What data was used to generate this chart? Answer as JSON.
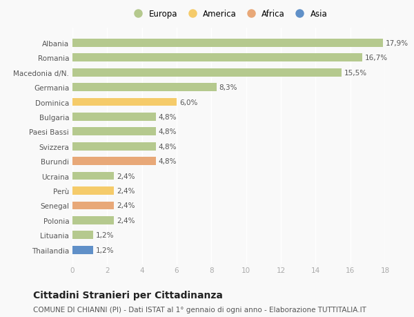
{
  "categories": [
    "Albania",
    "Romania",
    "Macedonia d/N.",
    "Germania",
    "Dominica",
    "Bulgaria",
    "Paesi Bassi",
    "Svizzera",
    "Burundi",
    "Ucraina",
    "Perù",
    "Senegal",
    "Polonia",
    "Lituania",
    "Thailandia"
  ],
  "values": [
    17.9,
    16.7,
    15.5,
    8.3,
    6.0,
    4.8,
    4.8,
    4.8,
    4.8,
    2.4,
    2.4,
    2.4,
    2.4,
    1.2,
    1.2
  ],
  "labels": [
    "17,9%",
    "16,7%",
    "15,5%",
    "8,3%",
    "6,0%",
    "4,8%",
    "4,8%",
    "4,8%",
    "4,8%",
    "2,4%",
    "2,4%",
    "2,4%",
    "2,4%",
    "1,2%",
    "1,2%"
  ],
  "continent": [
    "Europa",
    "Europa",
    "Europa",
    "Europa",
    "America",
    "Europa",
    "Europa",
    "Europa",
    "Africa",
    "Europa",
    "America",
    "Africa",
    "Europa",
    "Europa",
    "Asia"
  ],
  "colors": {
    "Europa": "#b5c98e",
    "America": "#f5cb6a",
    "Africa": "#e8a878",
    "Asia": "#6090c8"
  },
  "xlim": [
    0,
    18
  ],
  "xticks": [
    0,
    2,
    4,
    6,
    8,
    10,
    12,
    14,
    16,
    18
  ],
  "title": "Cittadini Stranieri per Cittadinanza",
  "subtitle": "COMUNE DI CHIANNI (PI) - Dati ISTAT al 1° gennaio di ogni anno - Elaborazione TUTTITALIA.IT",
  "background_color": "#f9f9f9",
  "plot_bg_color": "#f9f9f9",
  "grid_color": "#ffffff",
  "bar_height": 0.55,
  "title_fontsize": 10,
  "subtitle_fontsize": 7.5,
  "label_fontsize": 7.5,
  "tick_fontsize": 7.5,
  "legend_fontsize": 8.5,
  "legend_labels": [
    "Europa",
    "America",
    "Africa",
    "Asia"
  ]
}
